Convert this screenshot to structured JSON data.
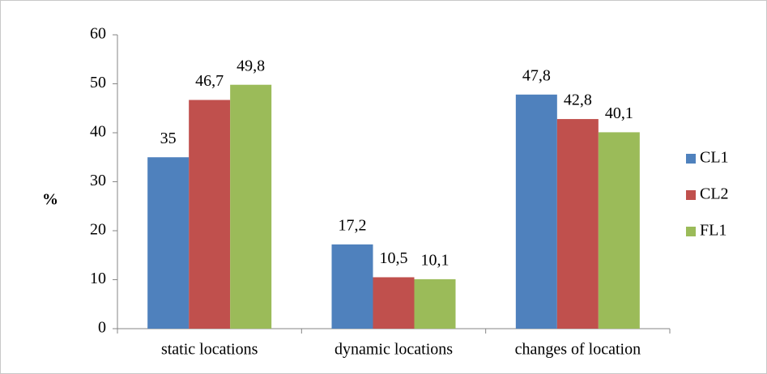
{
  "chart_data": {
    "type": "bar",
    "y_label": "%",
    "categories": [
      "static locations",
      "dynamic locations",
      "changes of location"
    ],
    "series": [
      {
        "name": "CL1",
        "color": "#4f81bd",
        "values": [
          35,
          17.2,
          47.8
        ],
        "value_labels": [
          "35",
          "17,2",
          "47,8"
        ]
      },
      {
        "name": "CL2",
        "color": "#c0504d",
        "values": [
          46.7,
          10.5,
          42.8
        ],
        "value_labels": [
          "46,7",
          "10,5",
          "42,8"
        ]
      },
      {
        "name": "FL1",
        "color": "#9bbb59",
        "values": [
          49.8,
          10.1,
          40.1
        ],
        "value_labels": [
          "49,8",
          "10,1",
          "40,1"
        ]
      }
    ],
    "ylim": [
      0,
      60
    ],
    "yticks": [
      0,
      10,
      20,
      30,
      40,
      50,
      60
    ],
    "grid": false,
    "legend": "right"
  }
}
